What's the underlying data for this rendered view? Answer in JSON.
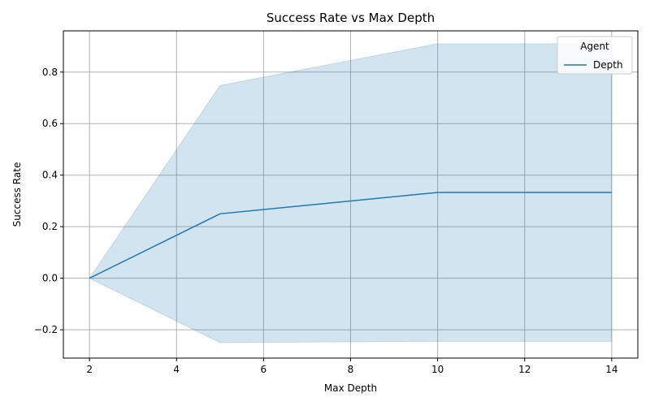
{
  "chart_data": {
    "type": "line",
    "title": "Success Rate vs Max Depth",
    "xlabel": "Max Depth",
    "ylabel": "Success Rate",
    "xlim": [
      1.4,
      14.6
    ],
    "ylim": [
      -0.31,
      0.96
    ],
    "xticks": [
      2,
      4,
      6,
      8,
      10,
      12,
      14
    ],
    "xtick_labels": [
      "2",
      "4",
      "6",
      "8",
      "10",
      "12",
      "14"
    ],
    "yticks": [
      -0.2,
      0.0,
      0.2,
      0.4,
      0.6,
      0.8
    ],
    "ytick_labels": [
      "−0.2",
      "0.0",
      "0.2",
      "0.4",
      "0.6",
      "0.8"
    ],
    "grid": true,
    "legend": {
      "title": "Agent",
      "placement": "top-right"
    },
    "series": [
      {
        "name": "Depth",
        "color": "#1f77b4",
        "band_color": "#1f77b4",
        "x": [
          2,
          5,
          10,
          14
        ],
        "y": [
          0.0,
          0.25,
          0.333,
          0.333
        ],
        "lower": [
          0.0,
          -0.25,
          -0.245,
          -0.245
        ],
        "upper": [
          0.0,
          0.748,
          0.91,
          0.91
        ]
      }
    ]
  }
}
